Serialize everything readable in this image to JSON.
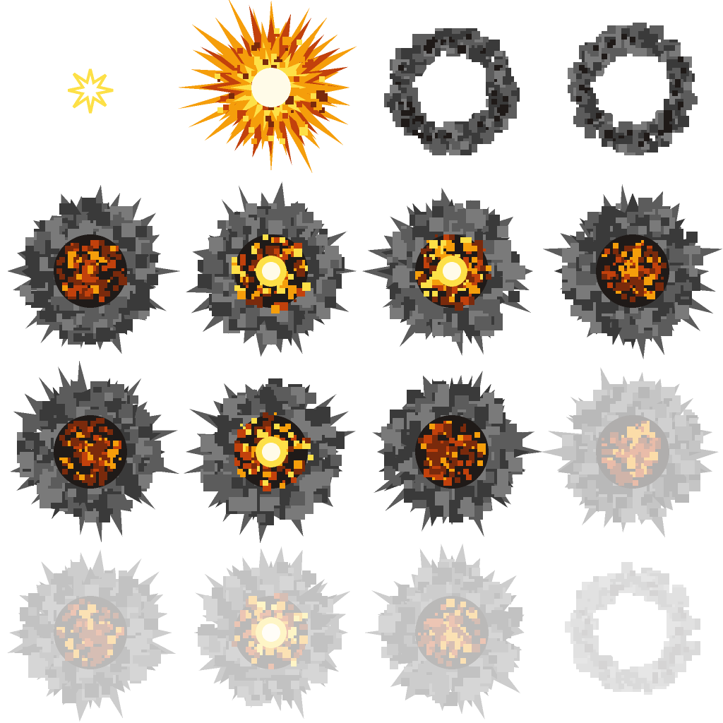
{
  "sprite_sheet": {
    "columns": 4,
    "rows": 4,
    "frames": [
      {
        "kind": "spark",
        "opacity": 1.0,
        "icon": "spark-star-icon"
      },
      {
        "kind": "flash",
        "opacity": 1.0,
        "icon": "fireball-icon"
      },
      {
        "kind": "ring",
        "opacity": 1.0,
        "icon": "smoke-ring-icon"
      },
      {
        "kind": "ring",
        "opacity": 1.0,
        "icon": "smoke-ring-icon"
      },
      {
        "kind": "burst",
        "fire": "ember",
        "opacity": 1.0,
        "icon": "smoke-burst-icon"
      },
      {
        "kind": "burst",
        "fire": "bright",
        "opacity": 1.0,
        "icon": "smoke-burst-icon"
      },
      {
        "kind": "burst",
        "fire": "bright",
        "opacity": 1.0,
        "icon": "smoke-burst-icon"
      },
      {
        "kind": "burst",
        "fire": "ember",
        "opacity": 1.0,
        "icon": "smoke-burst-icon"
      },
      {
        "kind": "burst",
        "fire": "ember",
        "opacity": 1.0,
        "icon": "smoke-burst-icon"
      },
      {
        "kind": "burst",
        "fire": "bright",
        "opacity": 1.0,
        "icon": "smoke-burst-icon"
      },
      {
        "kind": "burst",
        "fire": "ember",
        "opacity": 1.0,
        "icon": "smoke-burst-icon"
      },
      {
        "kind": "burst",
        "fire": "ember",
        "opacity": 0.35,
        "icon": "smoke-burst-icon"
      },
      {
        "kind": "burst",
        "fire": "ember",
        "opacity": 0.3,
        "icon": "smoke-burst-icon"
      },
      {
        "kind": "burst",
        "fire": "bright",
        "opacity": 0.3,
        "icon": "smoke-burst-icon"
      },
      {
        "kind": "burst",
        "fire": "ember",
        "opacity": 0.3,
        "icon": "smoke-burst-icon"
      },
      {
        "kind": "ring",
        "opacity": 0.18,
        "icon": "smoke-ring-icon"
      }
    ]
  },
  "colors": {
    "background": "#ffffff",
    "smoke_dark": "#3a3a3a",
    "smoke_mid": "#5c5c5c",
    "smoke_light": "#7a7a7a",
    "soot": "#1f1a18",
    "fire_dark": "#7a2a0c",
    "fire_mid": "#c2410c",
    "fire_orange": "#f59e0b",
    "fire_yellow": "#fde047",
    "fire_core": "#fffbe8",
    "spark": "#fde047"
  }
}
